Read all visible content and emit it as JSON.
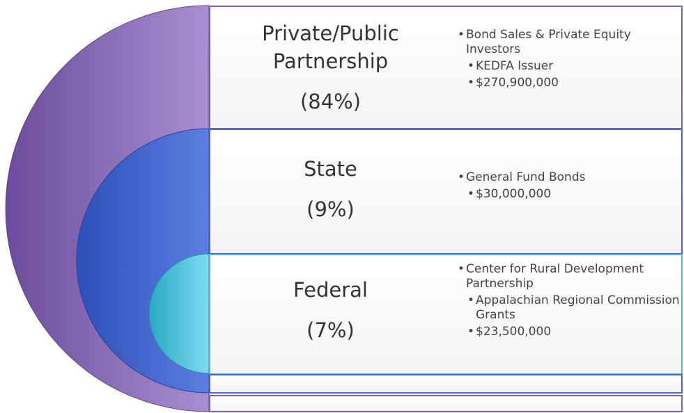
{
  "rows": [
    {
      "title": [
        "Private/Public",
        "Partnership"
      ],
      "percent": "(84%)",
      "bullets": [
        {
          "text": "Bond Sales & Private Equity Investors",
          "level": 1
        },
        {
          "text": "KEDFA Issuer",
          "level": 2
        },
        {
          "text": "$270,900,000",
          "level": 2
        }
      ]
    },
    {
      "title": [
        "State"
      ],
      "percent": "(9%)",
      "bullets": [
        {
          "text": "General Fund Bonds",
          "level": 1
        },
        {
          "text": "$30,000,000",
          "level": 2
        }
      ]
    },
    {
      "title": [
        "Federal"
      ],
      "percent": "(7%)",
      "bullets": [
        {
          "text": "Center for Rural Development Partnership",
          "level": 1
        },
        {
          "text": "Appalachian Regional Commission Grants",
          "level": 2
        },
        {
          "text": "$23,500,000",
          "level": 2
        }
      ]
    }
  ]
}
